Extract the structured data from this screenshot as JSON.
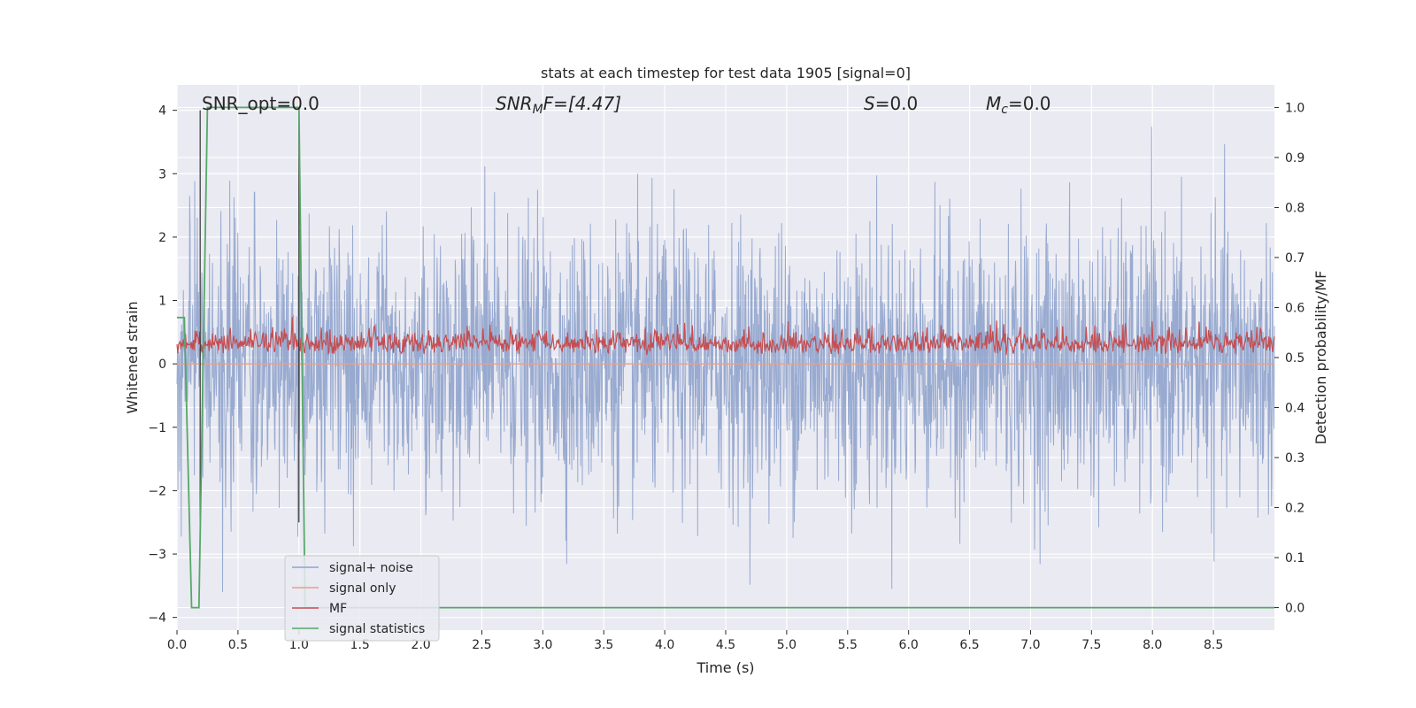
{
  "chart_data": {
    "type": "line",
    "title": "stats at each timestep for test data 1905 [signal=0]",
    "xlabel": "Time (s)",
    "ylabel": "Whitened strain",
    "y2label": "Detection probability/MF",
    "xlim": [
      0.0,
      9.0
    ],
    "ylim": [
      -4.2,
      4.4
    ],
    "y2lim": [
      -0.045,
      1.045
    ],
    "xticks": [
      "0.0",
      "0.5",
      "1.0",
      "1.5",
      "2.0",
      "2.5",
      "3.0",
      "3.5",
      "4.0",
      "4.5",
      "5.0",
      "5.5",
      "6.0",
      "6.5",
      "7.0",
      "7.5",
      "8.0",
      "8.5"
    ],
    "yticks": [
      "4",
      "3",
      "2",
      "1",
      "0",
      "−1",
      "−2",
      "−3",
      "−4"
    ],
    "y2ticks": [
      "1.0",
      "0.9",
      "0.8",
      "0.7",
      "0.6",
      "0.5",
      "0.4",
      "0.3",
      "0.2",
      "0.1",
      "0.0"
    ],
    "grid": true,
    "annotations": {
      "snr_opt": "SNR_opt=0.0",
      "snr_mf_sym": "SNR",
      "snr_mf_sub": "M",
      "snr_mf_rest": "F=[4.47]",
      "s_sym": "S",
      "s_rest": "=0.0",
      "mc_sym": "M",
      "mc_sub": "c",
      "mc_rest": "=0.0"
    },
    "vertical_lines_x": [
      0.19,
      1.0
    ],
    "series": [
      {
        "name": "signal+ noise",
        "color": "#8fa3cc",
        "description_range": [
          -3.6,
          4.0
        ]
      },
      {
        "name": "signal only",
        "color": "#e8a08a",
        "values_constant": 0.0
      },
      {
        "name": "MF",
        "color": "#c44e52",
        "approx_range_y2": [
          0.48,
          0.6
        ]
      },
      {
        "name": "signal statistics",
        "color": "#55a868",
        "x": [
          0.0,
          0.06,
          0.12,
          0.18,
          0.25,
          1.0,
          1.05,
          1.1,
          9.0
        ],
        "y2": [
          0.58,
          0.58,
          0.0,
          0.0,
          1.0,
          1.0,
          0.0,
          0.0,
          0.0
        ]
      }
    ],
    "legend": "lower-left"
  },
  "colors": {
    "plot_bg": "#eaeaf2",
    "grid": "#ffffff"
  }
}
